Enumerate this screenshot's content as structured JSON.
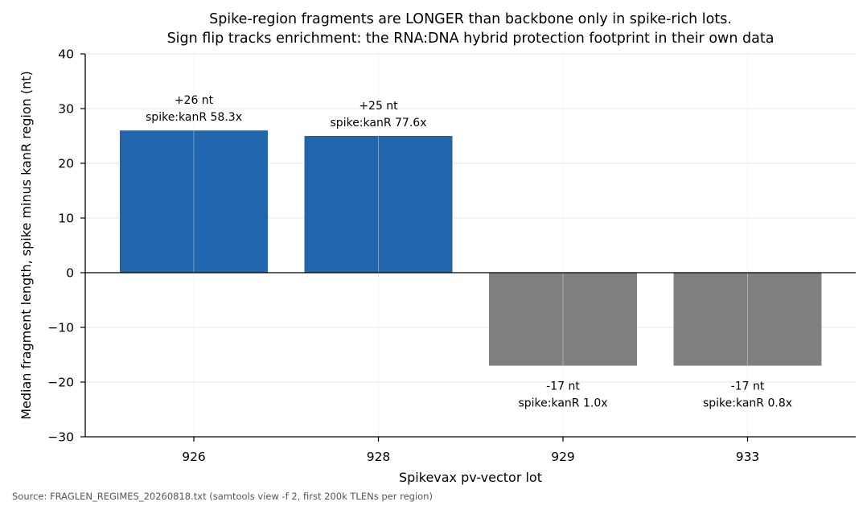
{
  "chart_data": {
    "type": "bar",
    "title": "Spike-region fragments are LONGER than backbone only in spike-rich lots.",
    "subtitle": "Sign flip tracks enrichment: the RNA:DNA hybrid protection footprint in their own data",
    "xlabel": "Spikevax pv-vector lot",
    "ylabel": "Median fragment length, spike minus kanR region (nt)",
    "categories": [
      "926",
      "928",
      "929",
      "933"
    ],
    "values": [
      26,
      25,
      -17,
      -17
    ],
    "bar_labels": [
      [
        "+26 nt",
        "spike:kanR 58.3x"
      ],
      [
        "+25 nt",
        "spike:kanR 77.6x"
      ],
      [
        "-17 nt",
        "spike:kanR 1.0x"
      ],
      [
        "-17 nt",
        "spike:kanR 0.8x"
      ]
    ],
    "ylim": [
      -30,
      40
    ],
    "yticks": [
      40,
      30,
      20,
      10,
      0,
      -10,
      -20,
      -30
    ],
    "ytick_labels": [
      "40",
      "30",
      "20",
      "10",
      "0",
      "−10",
      "−20",
      "−30"
    ],
    "grid": true,
    "legend": "none",
    "colors": {
      "positive": "#2166ac",
      "negative": "#808080",
      "zero_line": "#000000",
      "grid": "#e6e6e6"
    },
    "source_note": "Source: FRAGLEN_REGIMES_20260818.txt (samtools view -f 2, first 200k TLENs per region)"
  }
}
